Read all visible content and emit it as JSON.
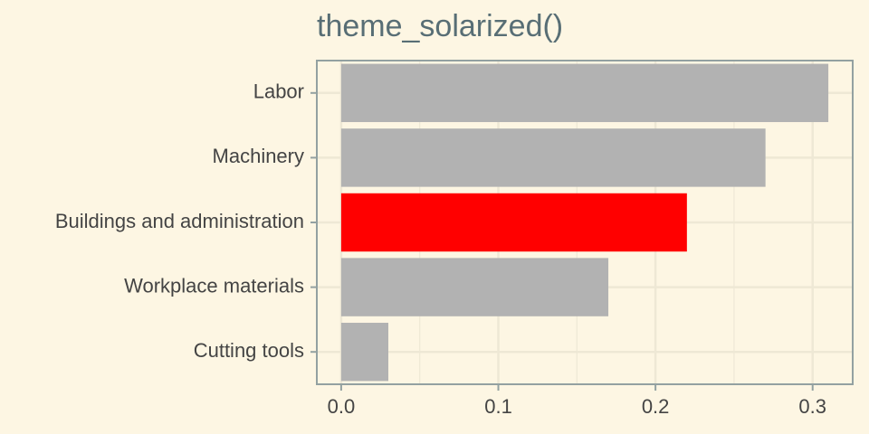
{
  "chart_data": {
    "type": "barh",
    "title": "theme_solarized()",
    "categories": [
      "Labor",
      "Machinery",
      "Buildings and administration",
      "Workplace materials",
      "Cutting tools"
    ],
    "values": [
      0.31,
      0.27,
      0.22,
      0.17,
      0.03
    ],
    "colors": [
      "#b2b2b2",
      "#b2b2b2",
      "#ff0000",
      "#b2b2b2",
      "#b2b2b2"
    ],
    "xlim": [
      -0.0155,
      0.3255
    ],
    "xticks": [
      {
        "value": 0,
        "label": "0.0"
      },
      0.1,
      0.2,
      0.3
    ],
    "minor_xticks": [
      0.05,
      0.15,
      0.25
    ],
    "grid": true
  }
}
